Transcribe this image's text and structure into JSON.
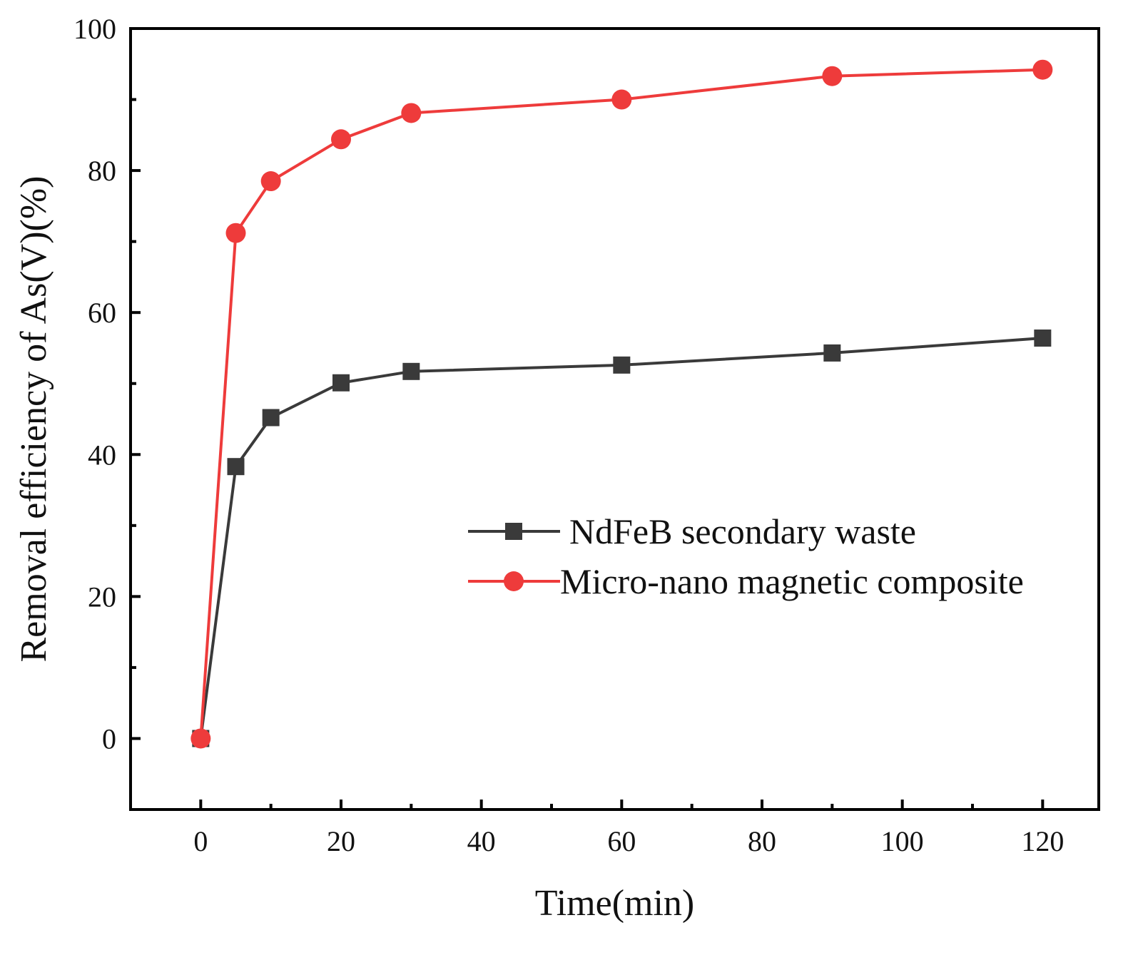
{
  "chart_data": {
    "type": "line",
    "title": "",
    "xlabel": "Time(min)",
    "ylabel": "Removal efficiency of As(V)(%)",
    "xlim": [
      -10,
      128
    ],
    "ylim": [
      -10,
      100
    ],
    "xticks": [
      0,
      20,
      40,
      60,
      80,
      100,
      120
    ],
    "xticks_minor": [
      10,
      30,
      50,
      70,
      90,
      110
    ],
    "yticks": [
      0,
      20,
      40,
      60,
      80,
      100
    ],
    "yticks_minor": [
      10,
      30,
      50,
      70,
      90
    ],
    "grid": false,
    "legend_position": "center-right",
    "x": [
      0,
      5,
      10,
      20,
      30,
      60,
      90,
      120
    ],
    "series": [
      {
        "name": "NdFeB secondary waste",
        "marker": "square",
        "color": "#3a3a3a",
        "values": [
          0,
          38.3,
          45.2,
          50.1,
          51.7,
          52.6,
          54.3,
          56.4
        ]
      },
      {
        "name": "Micro-nano magnetic composite",
        "marker": "circle",
        "color": "#ee3b3b",
        "values": [
          0,
          71.2,
          78.5,
          84.4,
          88.1,
          90.0,
          93.3,
          94.2
        ]
      }
    ]
  }
}
